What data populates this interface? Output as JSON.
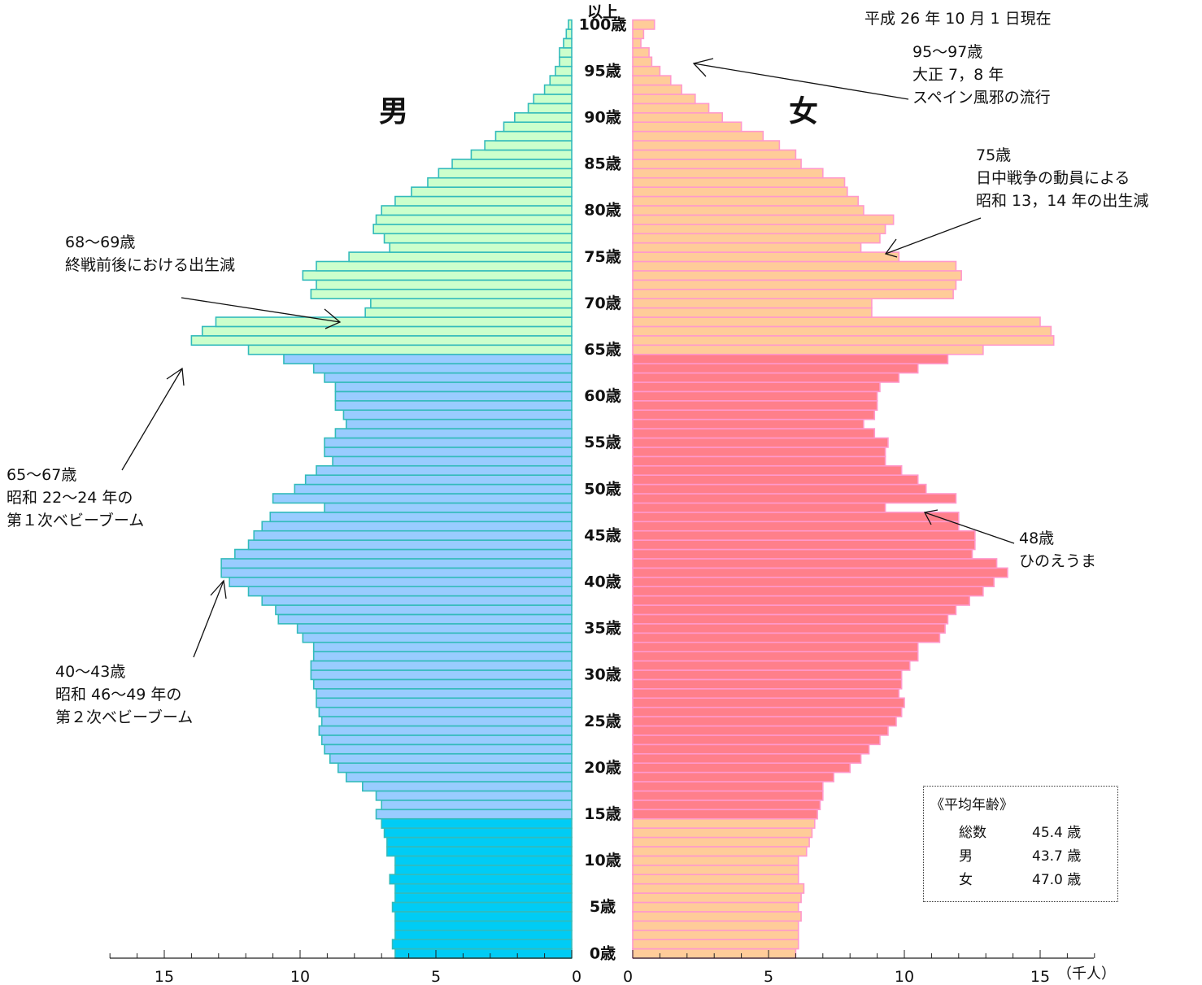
{
  "header": {
    "date": "平成 26 年 10 月 1 日現在",
    "male": "男",
    "female": "女"
  },
  "colors": {
    "male_0_14": "#00ccf5",
    "male_15_64": "#99ccff",
    "male_65_plus": "#ccffcc",
    "male_stroke": "#33bbbb",
    "female_0_14": "#ffcc99",
    "female_15_64": "#ff7f8a",
    "female_65_plus": "#ffcc99",
    "female_stroke": "#ff99cc"
  },
  "annotations": {
    "a95": {
      "line1": "95〜97歳",
      "line2": "大正 7，8 年",
      "line3": "スペイン風邪の流行"
    },
    "a75": {
      "line1": "75歳",
      "line2": "日中戦争の動員による",
      "line3": "昭和 13，14 年の出生減"
    },
    "a68": {
      "line1": "68〜69歳",
      "line2": "終戦前後における出生減"
    },
    "a65": {
      "line1": "65〜67歳",
      "line2": "昭和 22〜24 年の",
      "line3": "第１次ベビーブーム"
    },
    "a48": {
      "line1": "48歳",
      "line2": "ひのえうま"
    },
    "a40": {
      "line1": "40〜43歳",
      "line2": "昭和 46〜49 年の",
      "line3": "第２次ベビーブーム"
    }
  },
  "legend": {
    "title": "《平均年齢》",
    "rows": [
      {
        "label": "総数",
        "value": "45.4 歳"
      },
      {
        "label": "男",
        "value": "43.7 歳"
      },
      {
        "label": "女",
        "value": "47.0 歳"
      }
    ]
  },
  "chart_data": {
    "type": "bar",
    "orientation": "horizontal",
    "title": "",
    "unit": "（千人）",
    "xlim": [
      0,
      17
    ],
    "x_tick_labels_left": [
      "15",
      "10",
      "5",
      "0"
    ],
    "x_tick_labels_right": [
      "0",
      "5",
      "10",
      "15"
    ],
    "age_labels": [
      "0歳",
      "5歳",
      "10歳",
      "15歳",
      "20歳",
      "25歳",
      "30歳",
      "35歳",
      "40歳",
      "45歳",
      "50歳",
      "55歳",
      "60歳",
      "65歳",
      "70歳",
      "75歳",
      "80歳",
      "85歳",
      "90歳",
      "95歳",
      "100歳",
      "以上"
    ],
    "categories": [
      "0",
      "1",
      "2",
      "3",
      "4",
      "5",
      "6",
      "7",
      "8",
      "9",
      "10",
      "11",
      "12",
      "13",
      "14",
      "15",
      "16",
      "17",
      "18",
      "19",
      "20",
      "21",
      "22",
      "23",
      "24",
      "25",
      "26",
      "27",
      "28",
      "29",
      "30",
      "31",
      "32",
      "33",
      "34",
      "35",
      "36",
      "37",
      "38",
      "39",
      "40",
      "41",
      "42",
      "43",
      "44",
      "45",
      "46",
      "47",
      "48",
      "49",
      "50",
      "51",
      "52",
      "53",
      "54",
      "55",
      "56",
      "57",
      "58",
      "59",
      "60",
      "61",
      "62",
      "63",
      "64",
      "65",
      "66",
      "67",
      "68",
      "69",
      "70",
      "71",
      "72",
      "73",
      "74",
      "75",
      "76",
      "77",
      "78",
      "79",
      "80",
      "81",
      "82",
      "83",
      "84",
      "85",
      "86",
      "87",
      "88",
      "89",
      "90",
      "91",
      "92",
      "93",
      "94",
      "95",
      "96",
      "97",
      "98",
      "99",
      "100以上"
    ],
    "series": [
      {
        "name": "男",
        "values": [
          6.5,
          6.6,
          6.5,
          6.5,
          6.5,
          6.6,
          6.5,
          6.5,
          6.7,
          6.5,
          6.5,
          6.8,
          6.8,
          6.9,
          7.0,
          7.2,
          7.0,
          7.2,
          7.7,
          8.3,
          8.6,
          8.9,
          9.1,
          9.2,
          9.3,
          9.2,
          9.3,
          9.4,
          9.4,
          9.5,
          9.6,
          9.6,
          9.5,
          9.5,
          9.9,
          10.1,
          10.8,
          10.9,
          11.4,
          11.9,
          12.6,
          12.9,
          12.9,
          12.4,
          11.9,
          11.7,
          11.4,
          11.1,
          9.1,
          11.0,
          10.2,
          9.8,
          9.4,
          8.8,
          9.1,
          9.1,
          8.7,
          8.3,
          8.4,
          8.7,
          8.7,
          8.7,
          9.1,
          9.5,
          10.6,
          11.9,
          14.0,
          13.6,
          13.1,
          7.6,
          7.4,
          9.6,
          9.4,
          9.9,
          9.4,
          8.2,
          6.7,
          6.9,
          7.3,
          7.2,
          7.0,
          6.5,
          5.9,
          5.3,
          4.9,
          4.4,
          3.7,
          3.2,
          2.8,
          2.5,
          2.1,
          1.6,
          1.4,
          1.0,
          0.8,
          0.6,
          0.45,
          0.45,
          0.3,
          0.2,
          0.12
        ]
      },
      {
        "name": "女",
        "values": [
          6.0,
          6.1,
          6.1,
          6.1,
          6.2,
          6.1,
          6.2,
          6.3,
          6.1,
          6.1,
          6.1,
          6.4,
          6.5,
          6.6,
          6.7,
          6.8,
          6.9,
          7.0,
          7.0,
          7.4,
          8.0,
          8.4,
          8.7,
          9.1,
          9.4,
          9.7,
          9.9,
          10.0,
          9.8,
          9.9,
          9.9,
          10.2,
          10.5,
          10.5,
          11.3,
          11.5,
          11.6,
          11.9,
          12.4,
          12.9,
          13.3,
          13.8,
          13.4,
          12.5,
          12.6,
          12.6,
          12.0,
          12.0,
          9.3,
          11.9,
          10.8,
          10.5,
          9.9,
          9.3,
          9.3,
          9.4,
          8.9,
          8.5,
          8.9,
          9.0,
          9.0,
          9.1,
          9.8,
          10.5,
          11.6,
          12.9,
          15.5,
          15.4,
          15.0,
          8.8,
          8.8,
          11.8,
          11.9,
          12.1,
          11.9,
          9.8,
          8.4,
          9.1,
          9.3,
          9.6,
          8.5,
          8.3,
          7.9,
          7.8,
          7.0,
          6.2,
          6.0,
          5.4,
          4.8,
          4.0,
          3.3,
          2.8,
          2.3,
          1.8,
          1.4,
          1.0,
          0.7,
          0.6,
          0.3,
          0.4,
          0.8
        ]
      }
    ],
    "age_group_breaks": [
      15,
      65
    ],
    "legend": "bottom-right",
    "grid": false
  }
}
